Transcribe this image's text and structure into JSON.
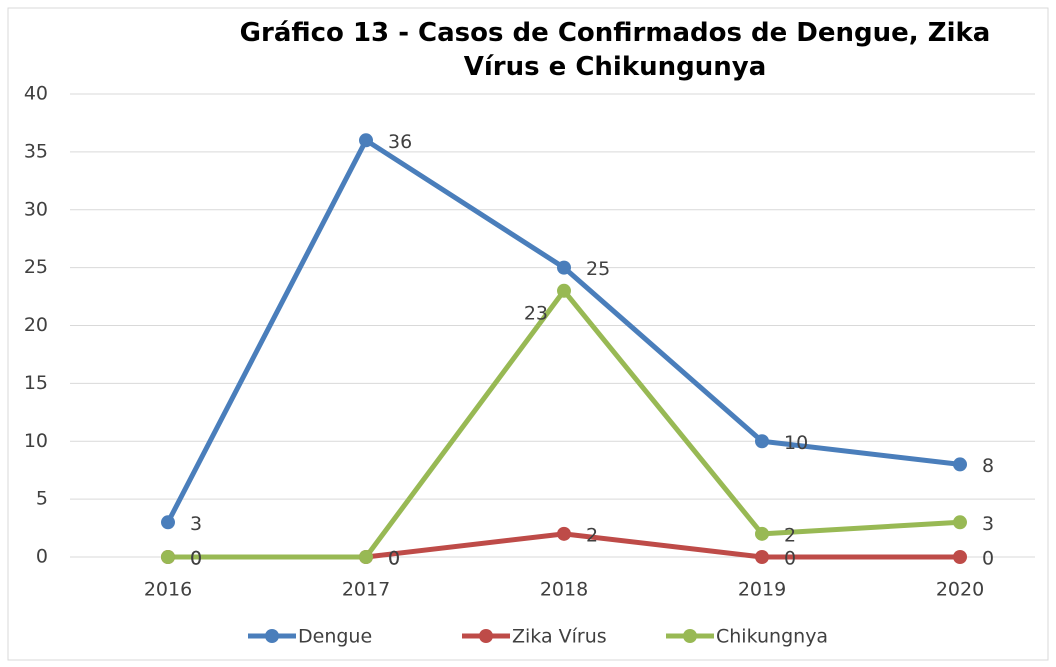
{
  "chart_data": {
    "type": "line",
    "title": "Gráfico 13 - Casos de Confirmados de Dengue, Zika Vírus e Chikungunya",
    "categories": [
      "2016",
      "2017",
      "2018",
      "2019",
      "2020"
    ],
    "series": [
      {
        "name": "Dengue",
        "color": "#4a7ebb",
        "values": [
          3,
          36,
          25,
          10,
          8
        ]
      },
      {
        "name": "Zika Vírus",
        "color": "#be4b48",
        "values": [
          0,
          0,
          2,
          0,
          0
        ]
      },
      {
        "name": "Chikungnya",
        "color": "#98b954",
        "values": [
          0,
          0,
          23,
          2,
          3
        ]
      }
    ],
    "ylim": [
      0,
      40
    ],
    "yticks": [
      0,
      5,
      10,
      15,
      20,
      25,
      30,
      35,
      40
    ],
    "grid": true,
    "legend": "bottom"
  }
}
